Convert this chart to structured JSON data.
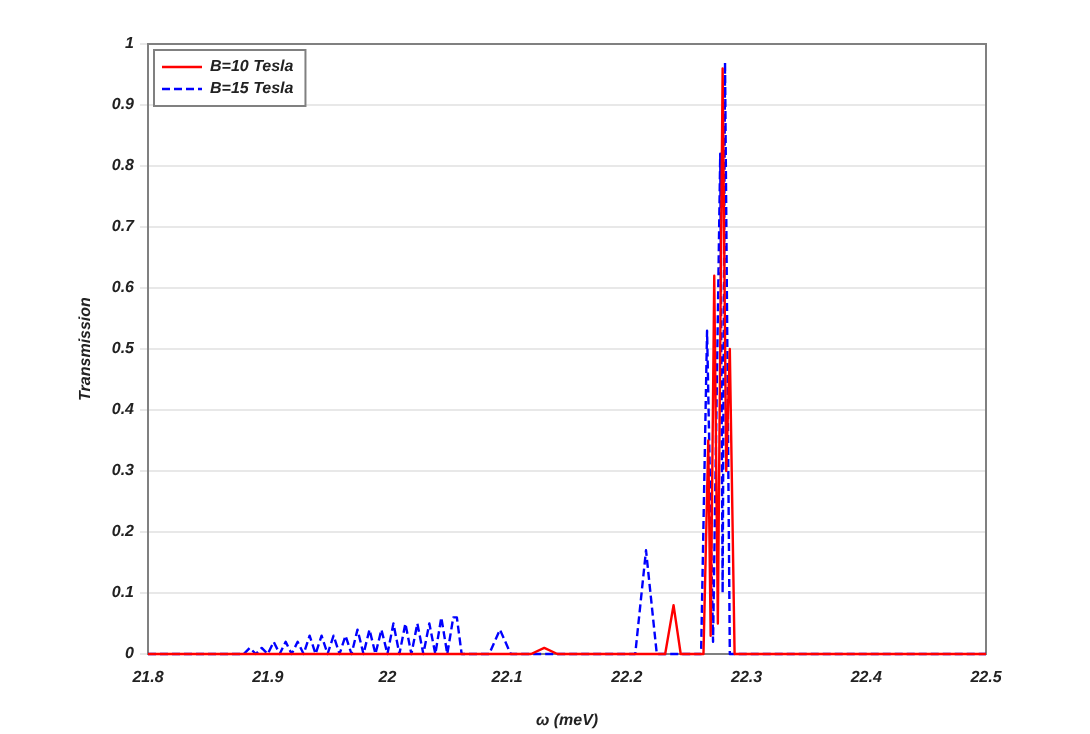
{
  "chart_data": {
    "type": "line",
    "xlabel": "ω (meV)",
    "ylabel": "Transmission",
    "xlim": [
      21.8,
      22.5
    ],
    "xticks": [
      21.8,
      21.9,
      22,
      22.1,
      22.2,
      22.3,
      22.4,
      22.5
    ],
    "ylim": [
      0,
      1
    ],
    "yticks": [
      0,
      0.1,
      0.2,
      0.3,
      0.4,
      0.5,
      0.6,
      0.7,
      0.8,
      0.9,
      1
    ],
    "grid": "y",
    "legend": "top left",
    "marker": "none",
    "series": [
      {
        "name": "B=10 Tesla",
        "color": "#ff0000",
        "line_style": "solid",
        "x": [
          21.8,
          22.12,
          22.131,
          22.142,
          22.232,
          22.239,
          22.245,
          22.264,
          22.268,
          22.27,
          22.273,
          22.276,
          22.28,
          22.283,
          22.286,
          22.29,
          22.5
        ],
        "values": [
          0,
          0,
          0.01,
          0,
          0,
          0.08,
          0,
          0,
          0.35,
          0.03,
          0.62,
          0.05,
          0.96,
          0.3,
          0.5,
          0,
          0
        ]
      },
      {
        "name": "B=15 Tesla",
        "color": "#0000ff",
        "line_style": "dashed",
        "x": [
          21.8,
          21.88,
          21.885,
          21.89,
          21.895,
          21.9,
          21.905,
          21.91,
          21.915,
          21.92,
          21.925,
          21.93,
          21.935,
          21.94,
          21.945,
          21.95,
          21.955,
          21.96,
          21.965,
          21.97,
          21.975,
          21.98,
          21.985,
          21.99,
          21.995,
          22,
          22.005,
          22.01,
          22.015,
          22.02,
          22.025,
          22.03,
          22.035,
          22.04,
          22.045,
          22.05,
          22.055,
          22.058,
          22.062,
          22.085,
          22.094,
          22.103,
          22.207,
          22.216,
          22.225,
          22.262,
          22.267,
          22.272,
          22.278,
          22.28,
          22.282,
          22.286,
          22.5
        ],
        "values": [
          0,
          0,
          0.01,
          0,
          0.01,
          0,
          0.02,
          0,
          0.02,
          0,
          0.02,
          0,
          0.03,
          0,
          0.03,
          0,
          0.03,
          0,
          0.03,
          0,
          0.04,
          0,
          0.04,
          0,
          0.04,
          0,
          0.05,
          0,
          0.05,
          0,
          0.05,
          0,
          0.05,
          0,
          0.06,
          0,
          0.06,
          0.06,
          0,
          0,
          0.04,
          0,
          0,
          0.17,
          0,
          0,
          0.53,
          0.02,
          0.82,
          0.1,
          0.97,
          0,
          0
        ]
      }
    ]
  }
}
